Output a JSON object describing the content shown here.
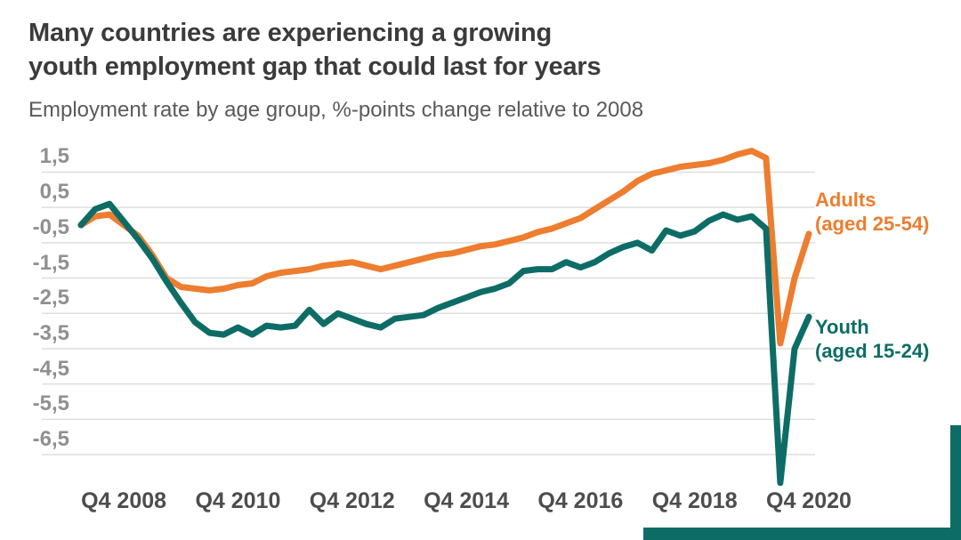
{
  "header": {
    "title_line1": "Many countries are experiencing a growing",
    "title_line2": "youth employment gap that could last for years",
    "subtitle": "Employment rate by age group, %-points change relative to 2008"
  },
  "colors": {
    "adults": "#ed7d2f",
    "youth": "#0d6d66",
    "grid": "#dedede",
    "title_text": "#3b3b3b",
    "subtitle_text": "#5a5a5a",
    "y_tick_text": "#909090",
    "x_tick_text": "#4d4d4d",
    "accent_bar": "#0d6d66",
    "background": "#ffffff"
  },
  "chart_data": {
    "type": "line",
    "title": "Many countries are experiencing a growing youth employment gap that could last for years",
    "subtitle": "Employment rate by age group, %-points change relative to 2008",
    "grid": true,
    "legend_position": "right of line ends",
    "decimal_style": "comma",
    "ylim": [
      -7.5,
      2.3
    ],
    "y_tick_values": [
      1.5,
      0.5,
      -0.5,
      -1.5,
      -2.5,
      -3.5,
      -4.5,
      -5.5,
      -6.5
    ],
    "y_tick_labels": [
      "1,5",
      "0,5",
      "-0,5",
      "-1,5",
      "-2,5",
      "-3,5",
      "-4,5",
      "-5,5",
      "-6,5"
    ],
    "x_tick_labels": [
      "Q4 2008",
      "Q4 2010",
      "Q4 2012",
      "Q4 2014",
      "Q4 2016",
      "Q4 2018",
      "Q4 2020"
    ],
    "categories": [
      "Q1 2008",
      "Q2 2008",
      "Q3 2008",
      "Q4 2008",
      "Q1 2009",
      "Q2 2009",
      "Q3 2009",
      "Q4 2009",
      "Q1 2010",
      "Q2 2010",
      "Q3 2010",
      "Q4 2010",
      "Q1 2011",
      "Q2 2011",
      "Q3 2011",
      "Q4 2011",
      "Q1 2012",
      "Q2 2012",
      "Q3 2012",
      "Q4 2012",
      "Q1 2013",
      "Q2 2013",
      "Q3 2013",
      "Q4 2013",
      "Q1 2014",
      "Q2 2014",
      "Q3 2014",
      "Q4 2014",
      "Q1 2015",
      "Q2 2015",
      "Q3 2015",
      "Q4 2015",
      "Q1 2016",
      "Q2 2016",
      "Q3 2016",
      "Q4 2016",
      "Q1 2017",
      "Q2 2017",
      "Q3 2017",
      "Q4 2017",
      "Q1 2018",
      "Q2 2018",
      "Q3 2018",
      "Q4 2018",
      "Q1 2019",
      "Q2 2019",
      "Q3 2019",
      "Q4 2019",
      "Q1 2020",
      "Q2 2020",
      "Q3 2020",
      "Q4 2020"
    ],
    "series": [
      {
        "name": "Adults (aged 25-54)",
        "label_line1": "Adults",
        "label_line2": "(aged 25-54)",
        "color": "#ed7d2f",
        "values": [
          0.0,
          0.25,
          0.3,
          0.0,
          -0.3,
          -0.85,
          -1.5,
          -1.75,
          -1.8,
          -1.85,
          -1.8,
          -1.7,
          -1.65,
          -1.45,
          -1.35,
          -1.3,
          -1.25,
          -1.15,
          -1.1,
          -1.05,
          -1.15,
          -1.25,
          -1.15,
          -1.05,
          -0.95,
          -0.85,
          -0.8,
          -0.7,
          -0.6,
          -0.55,
          -0.45,
          -0.35,
          -0.2,
          -0.1,
          0.05,
          0.2,
          0.45,
          0.7,
          0.95,
          1.25,
          1.45,
          1.55,
          1.65,
          1.7,
          1.75,
          1.85,
          2.0,
          2.1,
          1.9,
          -3.35,
          -1.5,
          -0.25
        ]
      },
      {
        "name": "Youth (aged 15-24)",
        "label_line1": "Youth",
        "label_line2": "(aged 15-24)",
        "color": "#0d6d66",
        "values": [
          0.0,
          0.45,
          0.6,
          0.1,
          -0.4,
          -0.95,
          -1.6,
          -2.2,
          -2.75,
          -3.05,
          -3.1,
          -2.9,
          -3.1,
          -2.85,
          -2.9,
          -2.85,
          -2.4,
          -2.8,
          -2.5,
          -2.65,
          -2.8,
          -2.9,
          -2.65,
          -2.6,
          -2.55,
          -2.35,
          -2.2,
          -2.05,
          -1.9,
          -1.8,
          -1.65,
          -1.3,
          -1.25,
          -1.25,
          -1.05,
          -1.2,
          -1.05,
          -0.8,
          -0.62,
          -0.5,
          -0.72,
          -0.15,
          -0.3,
          -0.18,
          0.12,
          0.3,
          0.15,
          0.25,
          -0.1,
          -7.3,
          -3.5,
          -2.6
        ]
      }
    ]
  }
}
